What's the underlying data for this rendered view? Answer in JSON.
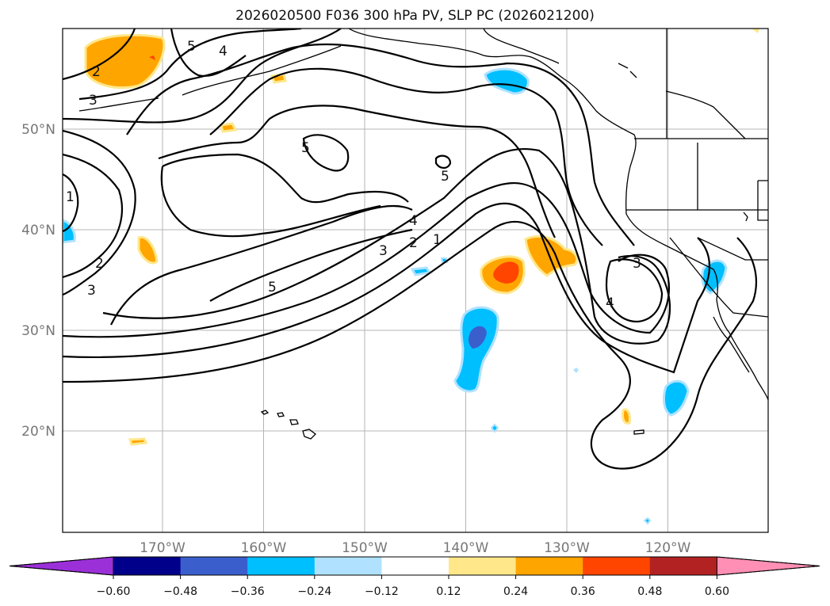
{
  "header": {
    "title": "2026020500 F036 300 hPa PV, SLP PC (2026021200)"
  },
  "map": {
    "lat_labels": [
      {
        "label": "50°N",
        "lat": 50
      },
      {
        "label": "40°N",
        "lat": 40
      },
      {
        "label": "30°N",
        "lat": 30
      },
      {
        "label": "20°N",
        "lat": 20
      }
    ],
    "lon_labels": [
      {
        "label": "170°W",
        "lon": -170
      },
      {
        "label": "160°W",
        "lon": -160
      },
      {
        "label": "150°W",
        "lon": -150
      },
      {
        "label": "140°W",
        "lon": -140
      },
      {
        "label": "130°W",
        "lon": -130
      },
      {
        "label": "120°W",
        "lon": -120
      }
    ],
    "contour_labels": [
      "5",
      "4",
      "2",
      "3",
      "1",
      "2",
      "3",
      "5",
      "5",
      "4",
      "3",
      "2",
      "1",
      "5",
      "3",
      "4"
    ]
  },
  "colorbar": {
    "ticks": [
      "−0.60",
      "−0.48",
      "−0.36",
      "−0.24",
      "−0.12",
      "0.12",
      "0.24",
      "0.36",
      "0.48",
      "0.60"
    ],
    "colors": [
      "#9b30d9",
      "#00008b",
      "#3a5fcd",
      "#00bfff",
      "#b0e2ff",
      "#ffffff",
      "#ffe78a",
      "#ffa500",
      "#ff4500",
      "#b22222",
      "#ff8fb5"
    ]
  }
}
